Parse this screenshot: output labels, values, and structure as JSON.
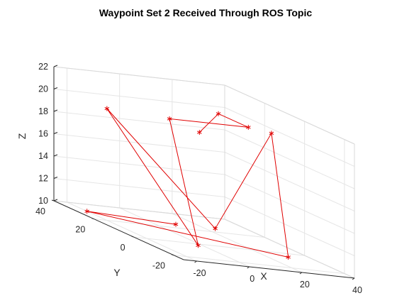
{
  "chart_data": {
    "type": "line3d",
    "title": "Waypoint Set 2 Received Through ROS Topic",
    "xlabel": "X",
    "ylabel": "Y",
    "zlabel": "Z",
    "xlim": [
      -25,
      40
    ],
    "ylim": [
      -25,
      40
    ],
    "zlim": [
      10,
      22
    ],
    "xticks": [
      -20,
      0,
      20,
      40
    ],
    "yticks": [
      -20,
      0,
      20,
      40
    ],
    "zticks": [
      10,
      12,
      14,
      16,
      18,
      20,
      22
    ],
    "grid": true,
    "series": [
      {
        "color": "#e00000",
        "marker": "asterisk",
        "points": [
          {
            "x": 0,
            "y": 0,
            "z": 20
          },
          {
            "x": 30,
            "y": 30,
            "z": 20
          },
          {
            "x": 30,
            "y": 15,
            "z": 20
          },
          {
            "x": 0,
            "y": 15,
            "z": 20
          },
          {
            "x": -2,
            "y": -2,
            "z": 10
          },
          {
            "x": -20,
            "y": 20,
            "z": 20
          },
          {
            "x": 25,
            "y": 25,
            "z": 10
          },
          {
            "x": 35,
            "y": 10,
            "z": 20
          },
          {
            "x": 30,
            "y": -5,
            "z": 10
          },
          {
            "x": -20,
            "y": 30,
            "z": 10
          },
          {
            "x": 10,
            "y": 25,
            "z": 10
          }
        ]
      }
    ]
  }
}
